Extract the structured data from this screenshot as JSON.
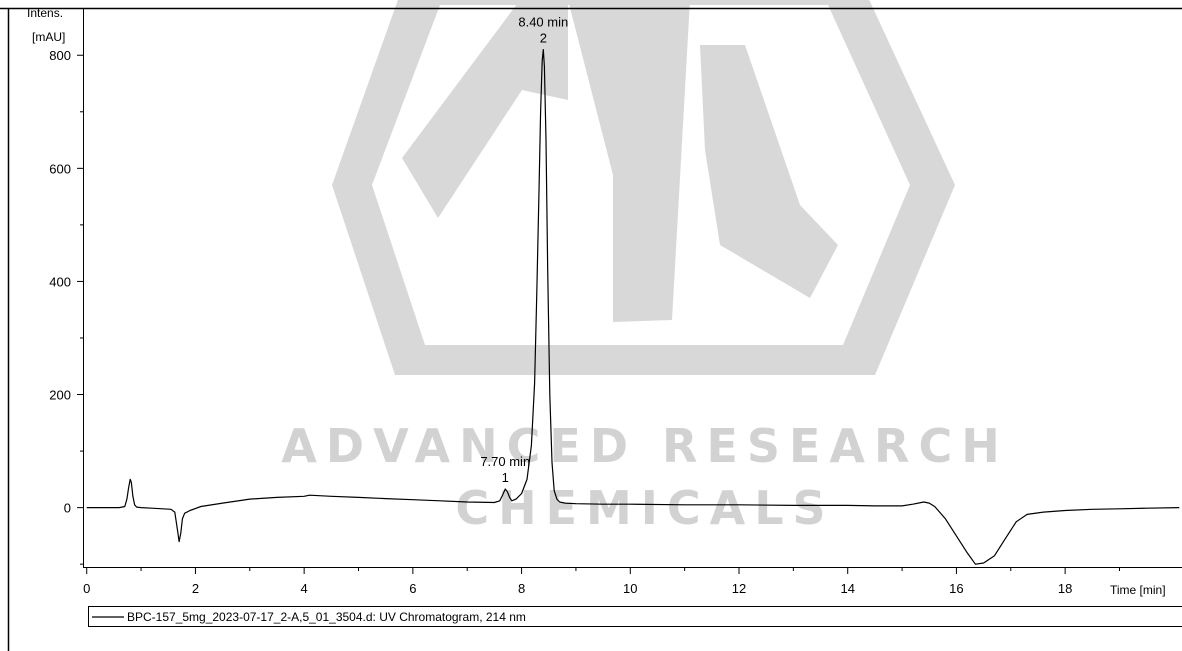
{
  "chart_data": {
    "type": "line",
    "watermark": {
      "line1": "ADVANCED RESEARCH",
      "line2": "CHEMICALS",
      "color": "#d8d8d8"
    },
    "yaxis": {
      "label_line1": "Intens.",
      "label_line2": "[mAU]",
      "ylim": [
        -105,
        880
      ],
      "ticks": [
        0,
        200,
        400,
        600,
        800
      ],
      "tick_labels": [
        "0",
        "200",
        "400",
        "600",
        "800"
      ]
    },
    "xaxis": {
      "label": "Time [min]",
      "xlim": [
        -0.05,
        20.15
      ],
      "ticks": [
        0,
        2,
        4,
        6,
        8,
        10,
        12,
        14,
        16,
        18
      ],
      "tick_labels": [
        "0",
        "2",
        "4",
        "6",
        "8",
        "10",
        "12",
        "14",
        "16",
        "18"
      ]
    },
    "peaks": [
      {
        "time_label": "7.70 min",
        "number": "1",
        "x": 7.7,
        "y": 33
      },
      {
        "time_label": "8.40 min",
        "number": "2",
        "x": 8.4,
        "y": 810
      }
    ],
    "legend": {
      "label": "BPC-157_5mg_2023-07-17_2-A,5_01_3504.d: UV Chromatogram, 214 nm"
    },
    "series": [
      {
        "color": "#000000",
        "x": [
          0.0,
          0.6,
          0.7,
          0.74,
          0.77,
          0.8,
          0.82,
          0.85,
          0.88,
          0.92,
          1.0,
          1.2,
          1.4,
          1.55,
          1.62,
          1.67,
          1.7,
          1.73,
          1.76,
          1.8,
          1.9,
          2.1,
          2.5,
          3.0,
          3.5,
          4.0,
          4.1,
          4.5,
          5.0,
          5.5,
          6.0,
          6.5,
          7.0,
          7.5,
          7.6,
          7.65,
          7.7,
          7.74,
          7.78,
          7.82,
          7.9,
          8.0,
          8.1,
          8.18,
          8.24,
          8.28,
          8.32,
          8.35,
          8.38,
          8.4,
          8.42,
          8.45,
          8.48,
          8.52,
          8.56,
          8.6,
          8.65,
          8.7,
          8.8,
          9.0,
          9.5,
          10.0,
          11.0,
          12.0,
          13.0,
          14.0,
          14.5,
          15.0,
          15.2,
          15.4,
          15.5,
          15.6,
          15.8,
          16.0,
          16.2,
          16.35,
          16.5,
          16.7,
          16.9,
          17.1,
          17.3,
          17.6,
          18.0,
          18.5,
          19.0,
          19.5,
          20.1
        ],
        "y": [
          0,
          0,
          2,
          15,
          35,
          50,
          45,
          20,
          5,
          1,
          0,
          -1,
          -2,
          -3,
          -8,
          -40,
          -60,
          -45,
          -20,
          -10,
          -5,
          2,
          8,
          15,
          18,
          20,
          22,
          20,
          18,
          16,
          14,
          12,
          10,
          9,
          12,
          22,
          33,
          28,
          18,
          12,
          15,
          25,
          50,
          110,
          220,
          380,
          560,
          700,
          790,
          810,
          780,
          650,
          420,
          200,
          80,
          30,
          15,
          10,
          8,
          7,
          6,
          6,
          5,
          5,
          4,
          4,
          3,
          3,
          6,
          10,
          8,
          2,
          -20,
          -50,
          -80,
          -100,
          -98,
          -85,
          -55,
          -25,
          -12,
          -8,
          -5,
          -3,
          -2,
          -1,
          0
        ]
      }
    ]
  }
}
